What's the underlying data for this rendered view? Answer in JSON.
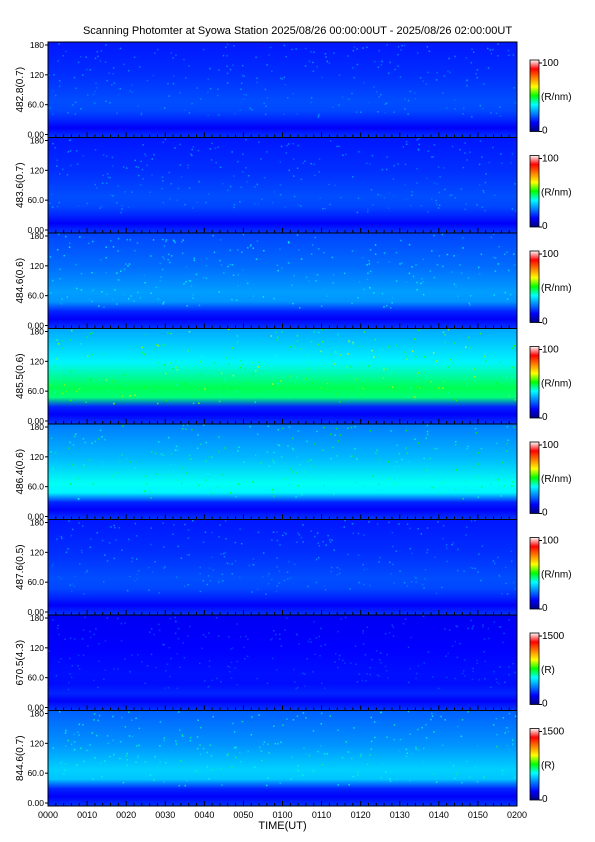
{
  "title": "Scanning Photomter at Syowa Station  2025/08/26 00:00:00UT - 2025/08/26 02:00:00UT",
  "xlabel": "TIME(UT)",
  "colors": {
    "background_dark": "#000a4a",
    "scale": [
      "#000080",
      "#0000ff",
      "#0080ff",
      "#00ffff",
      "#00ff00",
      "#ffff00",
      "#ff8000",
      "#ff0000",
      "#ffffff"
    ]
  },
  "chart_data": {
    "type": "heatmap",
    "x_ticks": [
      "0000",
      "0010",
      "0020",
      "0030",
      "0040",
      "0050",
      "0100",
      "0110",
      "0120",
      "0130",
      "0140",
      "0150",
      "0200"
    ],
    "y_ticks": [
      "0.00",
      "60.0",
      "120",
      "180"
    ],
    "ylim": [
      0,
      180
    ],
    "panels": [
      {
        "ylabel": "482.8(0.7)",
        "cbar_max": "100",
        "cbar_min": "0",
        "unit": "(R/nm)",
        "level": 0.12
      },
      {
        "ylabel": "483.6(0.7)",
        "cbar_max": "100",
        "cbar_min": "0",
        "unit": "(R/nm)",
        "level": 0.12
      },
      {
        "ylabel": "484.6(0.6)",
        "cbar_max": "100",
        "cbar_min": "0",
        "unit": "(R/nm)",
        "level": 0.2
      },
      {
        "ylabel": "485.5(0.6)",
        "cbar_max": "100",
        "cbar_min": "0",
        "unit": "(R/nm)",
        "level": 0.38
      },
      {
        "ylabel": "486.4(0.6)",
        "cbar_max": "100",
        "cbar_min": "0",
        "unit": "(R/nm)",
        "level": 0.3
      },
      {
        "ylabel": "487.6(0.5)",
        "cbar_max": "100",
        "cbar_min": "0",
        "unit": "(R/nm)",
        "level": 0.12
      },
      {
        "ylabel": "670.5(4.3)",
        "cbar_max": "1500",
        "cbar_min": "0",
        "unit": "(R)",
        "level": 0.06
      },
      {
        "ylabel": "844.6(0.7)",
        "cbar_max": "1500",
        "cbar_min": "0",
        "unit": "(R)",
        "level": 0.25
      }
    ]
  }
}
